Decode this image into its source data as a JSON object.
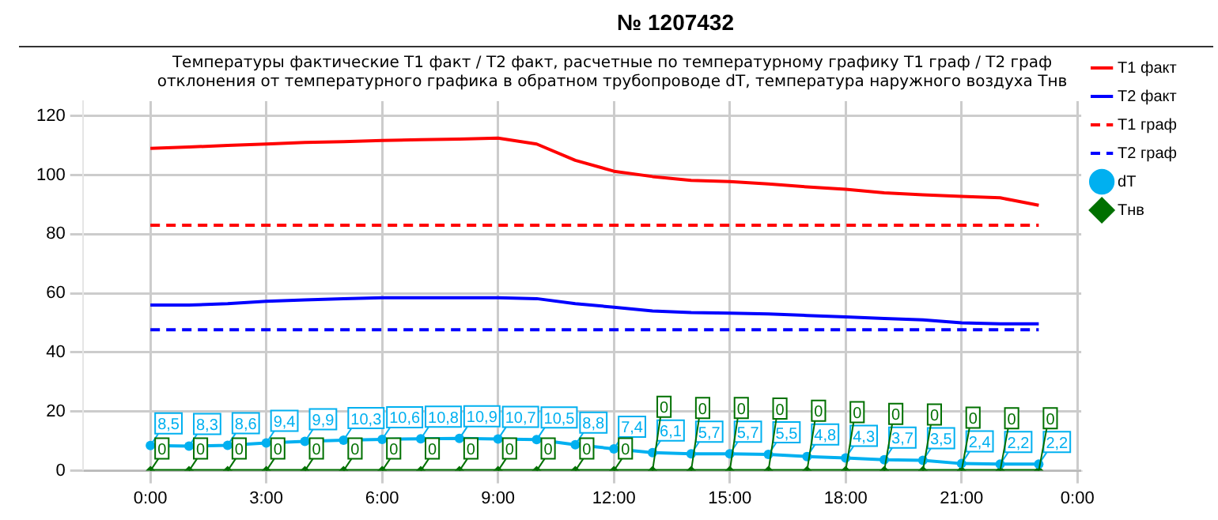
{
  "chart_data": {
    "type": "line",
    "title": "Температуры фактические Т1 факт / Т2 факт, расчетные по температурному графику Т1 граф / Т2 граф\nотклонения от температурного графика в обратном трубопроводе dT, температура наружного воздуха Тнв",
    "annotations": [
      "№ 1207432"
    ],
    "x": [
      0,
      1,
      2,
      3,
      4,
      5,
      6,
      7,
      8,
      9,
      10,
      11,
      12,
      13,
      14,
      15,
      16,
      17,
      18,
      19,
      20,
      21,
      22,
      23
    ],
    "xlim": [
      -1.75,
      24.1
    ],
    "xticks": [
      {
        "value": 0,
        "label": "0:00"
      },
      {
        "value": 3,
        "label": "3:00"
      },
      {
        "value": 6,
        "label": "6:00"
      },
      {
        "value": 9,
        "label": "9:00"
      },
      {
        "value": 12,
        "label": "12:00"
      },
      {
        "value": 15,
        "label": "15:00"
      },
      {
        "value": 18,
        "label": "18:00"
      },
      {
        "value": 21,
        "label": "21:00"
      },
      {
        "value": 24,
        "label": "0:00"
      }
    ],
    "ylim": [
      0,
      125
    ],
    "yticks": [
      0,
      20,
      40,
      60,
      80,
      100,
      120
    ],
    "grid": true,
    "legend": "right",
    "series": [
      {
        "name": "Т1 факт",
        "color": "#ff0000",
        "line_style": "solid",
        "marker": "none",
        "values": [
          109,
          109.5,
          110,
          110.5,
          111,
          111.3,
          111.7,
          112,
          112.2,
          112.5,
          110.5,
          105,
          101.3,
          99.5,
          98.2,
          97.8,
          97,
          96,
          95.2,
          94,
          93.3,
          92.8,
          92.3,
          89.8
        ]
      },
      {
        "name": "Т2 факт",
        "color": "#0000ff",
        "line_style": "solid",
        "marker": "none",
        "values": [
          56,
          56,
          56.5,
          57.3,
          57.8,
          58.2,
          58.5,
          58.5,
          58.5,
          58.5,
          58.2,
          56.5,
          55.3,
          54,
          53.5,
          53.3,
          53,
          52.5,
          52,
          51.5,
          51,
          50,
          49.7,
          49.7
        ]
      },
      {
        "name": "Т1 граф",
        "color": "#ff0000",
        "line_style": "dashed",
        "marker": "none",
        "values": [
          83,
          83,
          83,
          83,
          83,
          83,
          83,
          83,
          83,
          83,
          83,
          83,
          83,
          83,
          83,
          83,
          83,
          83,
          83,
          83,
          83,
          83,
          83,
          83
        ]
      },
      {
        "name": "Т2 граф",
        "color": "#0000ff",
        "line_style": "dashed",
        "marker": "none",
        "values": [
          47.7,
          47.7,
          47.7,
          47.7,
          47.7,
          47.7,
          47.7,
          47.7,
          47.7,
          47.7,
          47.7,
          47.7,
          47.7,
          47.7,
          47.7,
          47.7,
          47.7,
          47.7,
          47.7,
          47.7,
          47.7,
          47.7,
          47.7,
          47.7
        ]
      },
      {
        "name": "dT",
        "color": "#00b0f0",
        "line_style": "solid",
        "marker": "circle",
        "values": [
          8.5,
          8.3,
          8.6,
          9.4,
          9.9,
          10.3,
          10.6,
          10.8,
          10.9,
          10.7,
          10.5,
          8.8,
          7.4,
          6.1,
          5.7,
          5.7,
          5.5,
          4.8,
          4.3,
          3.7,
          3.5,
          2.4,
          2.2,
          2.2
        ],
        "value_labels": [
          "8,5",
          "8,3",
          "8,6",
          "9,4",
          "9,9",
          "10,3",
          "10,6",
          "10,8",
          "10,9",
          "10,7",
          "10,5",
          "8,8",
          "7,4",
          "6,1",
          "5,7",
          "5,7",
          "5,5",
          "4,8",
          "4,3",
          "3,7",
          "3,5",
          "2,4",
          "2,2",
          "2,2"
        ]
      },
      {
        "name": "Тнв",
        "color": "#007000",
        "line_style": "solid",
        "marker": "diamond",
        "values": [
          0,
          0,
          0,
          0,
          0,
          0,
          0,
          0,
          0,
          0,
          0,
          0,
          0,
          0,
          0,
          0,
          0,
          0,
          0,
          0,
          0,
          0,
          0,
          0
        ],
        "value_labels": [
          "0",
          "0",
          "0",
          "0",
          "0",
          "0",
          "0",
          "0",
          "0",
          "0",
          "0",
          "0",
          "0",
          "0",
          "0",
          "0",
          "0",
          "0",
          "0",
          "0",
          "0",
          "0",
          "0",
          "0"
        ]
      }
    ]
  }
}
